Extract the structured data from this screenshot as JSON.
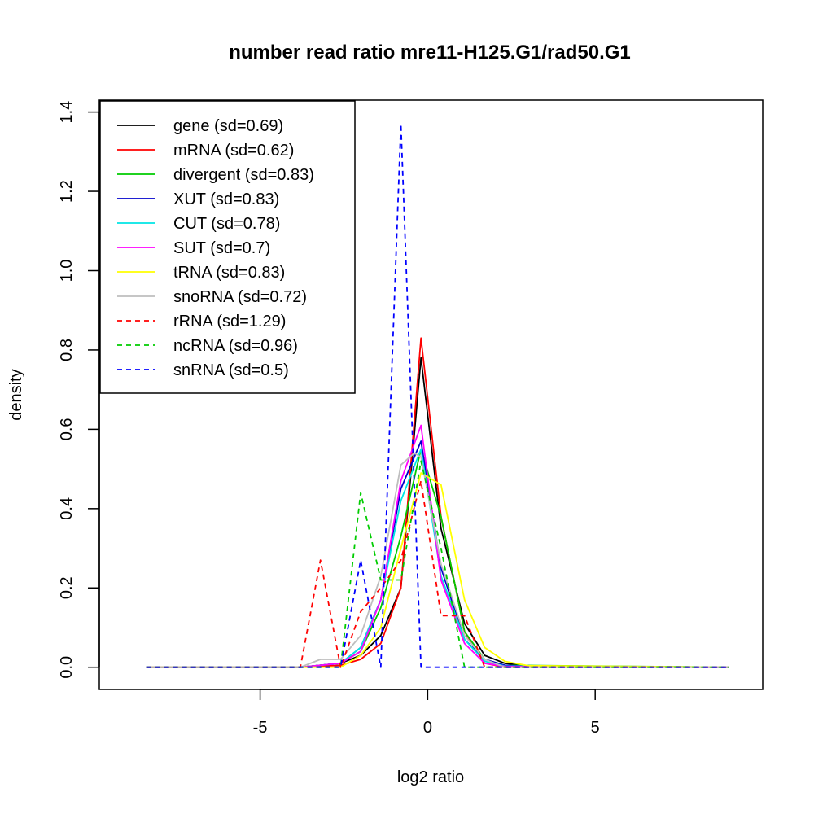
{
  "chart_data": {
    "type": "line",
    "title": "number read ratio mre11-H125.G1/rad50.G1",
    "xlabel": "log2 ratio",
    "ylabel": "density",
    "xlim": [
      -9.8,
      10.0
    ],
    "ylim": [
      -0.056,
      1.43
    ],
    "xticks": [
      -5,
      0,
      5
    ],
    "xtick_labels": [
      "-5",
      "0",
      "5"
    ],
    "yticks": [
      0.0,
      0.2,
      0.4,
      0.6,
      0.8,
      1.0,
      1.2,
      1.4
    ],
    "ytick_labels": [
      "0.0",
      "0.2",
      "0.4",
      "0.6",
      "0.8",
      "1.0",
      "1.2",
      "1.4"
    ],
    "legend_position": "top-left",
    "series": [
      {
        "name": "gene",
        "label": "gene (sd=0.69)",
        "color": "#000000",
        "dash": "solid",
        "x": [
          -8.4,
          -5.0,
          -3.8,
          -2.6,
          -2.0,
          -1.4,
          -0.8,
          -0.2,
          0.4,
          1.1,
          1.7,
          2.3,
          3.0,
          9.0
        ],
        "y": [
          0,
          0,
          0,
          0.01,
          0.03,
          0.08,
          0.2,
          0.78,
          0.35,
          0.11,
          0.03,
          0.01,
          0.003,
          0
        ]
      },
      {
        "name": "mRNA",
        "label": "mRNA (sd=0.62)",
        "color": "#ff0000",
        "dash": "solid",
        "x": [
          -8.4,
          -5.0,
          -3.8,
          -2.6,
          -2.0,
          -1.4,
          -0.8,
          -0.2,
          0.4,
          1.1,
          1.7,
          2.3,
          9.0
        ],
        "y": [
          0,
          0,
          0,
          0.005,
          0.02,
          0.06,
          0.2,
          0.83,
          0.38,
          0.09,
          0.01,
          0,
          0
        ]
      },
      {
        "name": "divergent",
        "label": "divergent (sd=0.83)",
        "color": "#00cc00",
        "dash": "solid",
        "x": [
          -8.4,
          -5.0,
          -3.8,
          -2.6,
          -2.0,
          -1.4,
          -0.8,
          -0.2,
          0.4,
          1.1,
          1.7,
          2.3,
          9.0
        ],
        "y": [
          0,
          0,
          0,
          0.01,
          0.04,
          0.15,
          0.33,
          0.55,
          0.38,
          0.09,
          0.02,
          0.005,
          0
        ]
      },
      {
        "name": "XUT",
        "label": "XUT (sd=0.83)",
        "color": "#0000cc",
        "dash": "solid",
        "x": [
          -8.4,
          -5.0,
          -3.8,
          -2.6,
          -2.0,
          -1.4,
          -0.8,
          -0.2,
          0.4,
          1.1,
          1.7,
          2.3,
          3.0,
          9.0
        ],
        "y": [
          0,
          0,
          0,
          0.01,
          0.05,
          0.17,
          0.45,
          0.57,
          0.25,
          0.07,
          0.02,
          0.005,
          0.002,
          0
        ]
      },
      {
        "name": "CUT",
        "label": "CUT (sd=0.78)",
        "color": "#00e5e5",
        "dash": "solid",
        "x": [
          -8.4,
          -5.0,
          -3.8,
          -2.6,
          -2.0,
          -1.4,
          -0.8,
          -0.2,
          0.4,
          1.1,
          1.7,
          2.3,
          9.0
        ],
        "y": [
          0,
          0,
          0,
          0.01,
          0.05,
          0.17,
          0.42,
          0.55,
          0.23,
          0.07,
          0.015,
          0.003,
          0
        ]
      },
      {
        "name": "SUT",
        "label": "SUT (sd=0.7)",
        "color": "#ff00ff",
        "dash": "solid",
        "x": [
          -8.4,
          -5.0,
          -3.8,
          -2.6,
          -2.0,
          -1.4,
          -0.8,
          -0.2,
          0.4,
          1.1,
          1.7,
          2.3,
          9.0
        ],
        "y": [
          0,
          0,
          0,
          0.01,
          0.04,
          0.17,
          0.47,
          0.61,
          0.22,
          0.06,
          0.01,
          0.002,
          0
        ]
      },
      {
        "name": "tRNA",
        "label": "tRNA (sd=0.83)",
        "color": "#ffff00",
        "dash": "solid",
        "x": [
          -8.4,
          -5.0,
          -3.8,
          -2.6,
          -2.0,
          -1.4,
          -0.8,
          -0.2,
          0.4,
          1.1,
          1.7,
          2.3,
          3.0,
          9.0
        ],
        "y": [
          0,
          0,
          0,
          0,
          0.03,
          0.1,
          0.3,
          0.49,
          0.46,
          0.17,
          0.05,
          0.015,
          0.004,
          0
        ]
      },
      {
        "name": "snoRNA",
        "label": "snoRNA (sd=0.72)",
        "color": "#bebebe",
        "dash": "solid",
        "x": [
          -8.4,
          -5.0,
          -3.8,
          -3.2,
          -2.6,
          -2.0,
          -1.4,
          -0.8,
          -0.4,
          -0.2,
          0.4,
          1.1,
          1.7,
          2.3,
          9.0
        ],
        "y": [
          0,
          0,
          0,
          0.02,
          0.02,
          0.08,
          0.23,
          0.51,
          0.54,
          0.53,
          0.26,
          0.08,
          0.02,
          0,
          0
        ]
      },
      {
        "name": "rRNA",
        "label": "rRNA (sd=1.29)",
        "color": "#ff0000",
        "dash": "dashed",
        "x": [
          -8.4,
          -5.0,
          -3.8,
          -3.2,
          -2.6,
          -2.0,
          -1.4,
          -0.8,
          -0.2,
          0.4,
          1.1,
          1.7,
          9.0
        ],
        "y": [
          0,
          0,
          0,
          0.27,
          0,
          0.14,
          0.2,
          0.27,
          0.47,
          0.13,
          0.13,
          0,
          0
        ]
      },
      {
        "name": "ncRNA",
        "label": "ncRNA (sd=0.96)",
        "color": "#00cc00",
        "dash": "dashed",
        "x": [
          -8.4,
          -5.0,
          -3.8,
          -2.6,
          -2.0,
          -1.4,
          -0.8,
          -0.2,
          0.4,
          1.1,
          9.0
        ],
        "y": [
          0,
          0,
          0,
          0,
          0.44,
          0.22,
          0.22,
          0.52,
          0.3,
          0,
          0
        ]
      },
      {
        "name": "snRNA",
        "label": "snRNA (sd=0.5)",
        "color": "#0000ff",
        "dash": "dashed",
        "x": [
          -8.4,
          -5.0,
          -3.8,
          -2.6,
          -2.0,
          -1.4,
          -0.8,
          -0.2,
          0.4,
          9.0
        ],
        "y": [
          0,
          0,
          0,
          0,
          0.27,
          0,
          1.37,
          0,
          0,
          0
        ]
      }
    ]
  }
}
